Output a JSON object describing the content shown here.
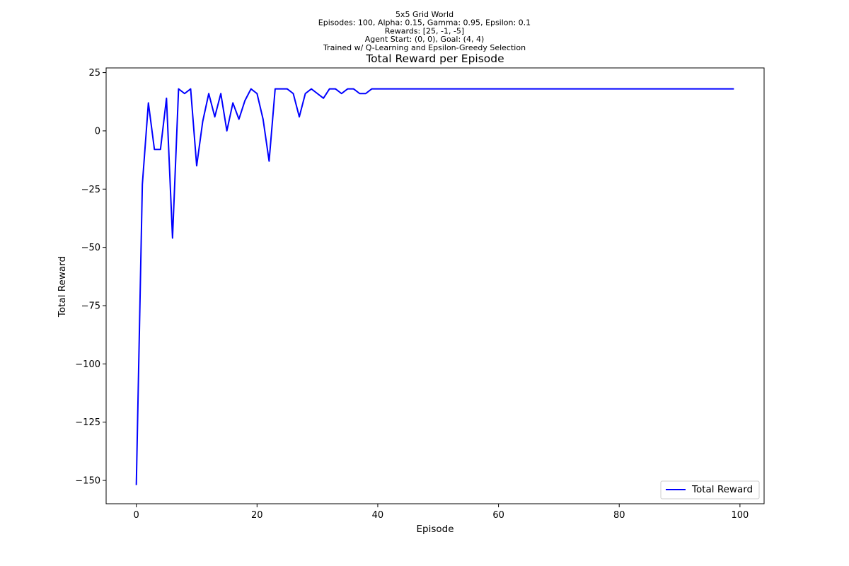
{
  "figure": {
    "suptitle_lines": [
      "5x5 Grid World",
      "Episodes: 100, Alpha: 0.15, Gamma: 0.95, Epsilon: 0.1",
      "Rewards: [25, -1, -5]",
      "Agent Start: (0, 0), Goal: (4, 4)",
      "Trained w/ Q-Learning and Epsilon-Greedy Selection"
    ]
  },
  "chart_data": {
    "type": "line",
    "title": "Total Reward per Episode",
    "xlabel": "Episode",
    "ylabel": "Total Reward",
    "xlim": [
      -5,
      104
    ],
    "ylim": [
      -160,
      27
    ],
    "x_ticks": [
      0,
      20,
      40,
      60,
      80,
      100
    ],
    "y_ticks": [
      -150,
      -125,
      -100,
      -75,
      -50,
      -25,
      0,
      25
    ],
    "x_tick_labels": [
      "0",
      "20",
      "40",
      "60",
      "80",
      "100"
    ],
    "y_tick_labels": [
      "−150",
      "−125",
      "−100",
      "−75",
      "−50",
      "−25",
      "0",
      "25"
    ],
    "grid": false,
    "legend_position": "lower-right",
    "series": [
      {
        "name": "Total Reward",
        "color": "#0000ff",
        "x": [
          0,
          1,
          2,
          3,
          4,
          5,
          6,
          7,
          8,
          9,
          10,
          11,
          12,
          13,
          14,
          15,
          16,
          17,
          18,
          19,
          20,
          21,
          22,
          23,
          24,
          25,
          26,
          27,
          28,
          29,
          30,
          31,
          32,
          33,
          34,
          35,
          36,
          37,
          38,
          39,
          40,
          41,
          42,
          43,
          44,
          45,
          46,
          47,
          48,
          49,
          50,
          51,
          52,
          53,
          54,
          55,
          56,
          57,
          58,
          59,
          60,
          61,
          62,
          63,
          64,
          65,
          66,
          67,
          68,
          69,
          70,
          71,
          72,
          73,
          74,
          75,
          76,
          77,
          78,
          79,
          80,
          81,
          82,
          83,
          84,
          85,
          86,
          87,
          88,
          89,
          90,
          91,
          92,
          93,
          94,
          95,
          96,
          97,
          98,
          99
        ],
        "values": [
          -152,
          -23,
          12,
          -8,
          -8,
          14,
          -46,
          18,
          16,
          18,
          -15,
          4,
          16,
          6,
          16,
          0,
          12,
          5,
          13,
          18,
          16,
          5,
          -13,
          18,
          18,
          18,
          16,
          6,
          16,
          18,
          16,
          14,
          18,
          18,
          16,
          18,
          18,
          16,
          16,
          18,
          18,
          18,
          18,
          18,
          18,
          18,
          18,
          18,
          18,
          18,
          18,
          18,
          18,
          18,
          18,
          18,
          18,
          18,
          18,
          18,
          18,
          18,
          18,
          18,
          18,
          18,
          18,
          18,
          18,
          18,
          18,
          18,
          18,
          18,
          18,
          18,
          18,
          18,
          18,
          18,
          18,
          18,
          18,
          18,
          18,
          18,
          18,
          18,
          18,
          18,
          18,
          18,
          18,
          18,
          18,
          18,
          18,
          18,
          18,
          18
        ]
      }
    ]
  }
}
